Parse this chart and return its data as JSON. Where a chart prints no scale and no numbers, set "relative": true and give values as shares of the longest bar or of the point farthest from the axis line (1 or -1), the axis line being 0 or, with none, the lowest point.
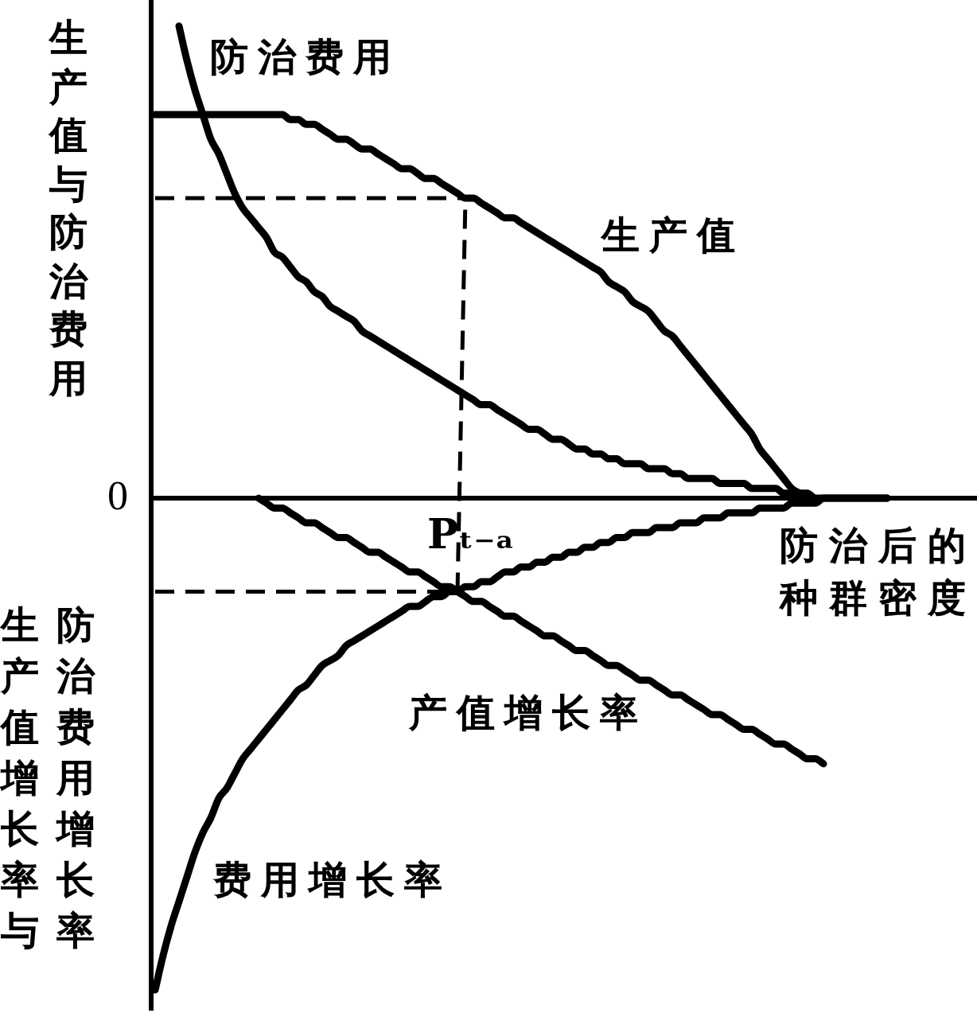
{
  "chart_data": {
    "type": "line",
    "relative": true,
    "ylabel": "生产值与防治费用",
    "xlabel": "防治后的种群密度",
    "categories": [
      null,
      null,
      null,
      null,
      null,
      null,
      null,
      null,
      null,
      null,
      null,
      null,
      null,
      null,
      null,
      null,
      null,
      null,
      null,
      null,
      null,
      null,
      null,
      null,
      null,
      null,
      null,
      null,
      null,
      null,
      null,
      null,
      null,
      null,
      null,
      null,
      null,
      null,
      null,
      null,
      null,
      null,
      null,
      null,
      null,
      null,
      null,
      null,
      null,
      null,
      null,
      null,
      null,
      null,
      null,
      null,
      null,
      null,
      null,
      null,
      null,
      null,
      null,
      null,
      null,
      null,
      null,
      null,
      null,
      null,
      null,
      null,
      null,
      null,
      null,
      null,
      null,
      null,
      null,
      null,
      null,
      null,
      null,
      null,
      null,
      null,
      null,
      null,
      null,
      null,
      null,
      null,
      null,
      null,
      null,
      null,
      null,
      null,
      null,
      null,
      null,
      null,
      null,
      null
    ],
    "series": [
      {
        "name": "生产值",
        "color": "#000000",
        "values": [
          0.78,
          0.78,
          0.78,
          0.78,
          0.78,
          0.78,
          0.78,
          0.78,
          0.78,
          0.78,
          0.78,
          0.78,
          0.78,
          0.78,
          0.78,
          0.78,
          0.78,
          0.77,
          0.77,
          0.76,
          0.76,
          0.75,
          0.74,
          0.73,
          0.73,
          0.72,
          0.71,
          0.71,
          0.7,
          0.69,
          0.68,
          0.67,
          0.67,
          0.66,
          0.65,
          0.65,
          0.64,
          0.63,
          0.62,
          0.61,
          0.61,
          0.6,
          0.59,
          0.58,
          0.57,
          0.57,
          0.56,
          0.55,
          0.54,
          0.53,
          0.52,
          0.51,
          0.5,
          0.49,
          0.48,
          0.47,
          0.46,
          0.44,
          0.43,
          0.42,
          0.4,
          0.39,
          0.38,
          0.36,
          0.34,
          0.33,
          0.31,
          0.29,
          0.27,
          0.25,
          0.23,
          0.21,
          0.19,
          0.17,
          0.15,
          0.13,
          0.1,
          0.08,
          0.06,
          0.04,
          0.02,
          0.01,
          0,
          null,
          null,
          null,
          null,
          null,
          null,
          null,
          null,
          null,
          null,
          null,
          null,
          null,
          null,
          null,
          null,
          null,
          null,
          null,
          null,
          null
        ]
      },
      {
        "name": "防治费用",
        "color": "#000000",
        "values": [
          null,
          null,
          null,
          0.96,
          0.89,
          0.83,
          0.78,
          0.73,
          0.7,
          0.66,
          0.62,
          0.59,
          0.57,
          0.55,
          0.53,
          0.5,
          0.49,
          0.47,
          0.45,
          0.44,
          0.42,
          0.41,
          0.39,
          0.38,
          0.37,
          0.36,
          0.34,
          0.33,
          0.32,
          0.31,
          0.3,
          0.29,
          0.28,
          0.27,
          0.26,
          0.25,
          0.24,
          0.23,
          0.22,
          0.21,
          0.2,
          0.19,
          0.19,
          0.18,
          0.17,
          0.16,
          0.15,
          0.14,
          0.14,
          0.13,
          0.12,
          0.12,
          0.11,
          0.1,
          0.1,
          0.09,
          0.09,
          0.08,
          0.08,
          0.07,
          0.07,
          0.07,
          0.06,
          0.06,
          0.06,
          0.05,
          0.05,
          0.04,
          0.04,
          0.04,
          0.04,
          0.03,
          0.03,
          0.03,
          0.03,
          0.02,
          0.02,
          0.02,
          0.02,
          0.01,
          0.01,
          0.01,
          0.01,
          0,
          0,
          0,
          0,
          0,
          0,
          0,
          0,
          0,
          0,
          null,
          null,
          null,
          null,
          null,
          null,
          null,
          null,
          null,
          null,
          null
        ]
      },
      {
        "name": "产值增长率",
        "color": "#000000",
        "values": [
          null,
          null,
          null,
          null,
          null,
          null,
          null,
          null,
          null,
          null,
          null,
          null,
          null,
          0,
          -0.01,
          -0.02,
          -0.02,
          -0.03,
          -0.04,
          -0.05,
          -0.05,
          -0.06,
          -0.07,
          -0.08,
          -0.08,
          -0.09,
          -0.1,
          -0.11,
          -0.11,
          -0.12,
          -0.13,
          -0.14,
          -0.15,
          -0.15,
          -0.16,
          -0.17,
          -0.18,
          -0.18,
          -0.19,
          -0.2,
          -0.21,
          -0.21,
          -0.22,
          -0.23,
          -0.24,
          -0.24,
          -0.25,
          -0.26,
          -0.27,
          -0.28,
          -0.28,
          -0.29,
          -0.3,
          -0.31,
          -0.31,
          -0.32,
          -0.33,
          -0.34,
          -0.34,
          -0.35,
          -0.36,
          -0.37,
          -0.37,
          -0.38,
          -0.39,
          -0.4,
          -0.4,
          -0.41,
          -0.42,
          -0.43,
          -0.44,
          -0.44,
          -0.45,
          -0.46,
          -0.47,
          -0.47,
          -0.48,
          -0.49,
          -0.5,
          -0.5,
          -0.51,
          -0.52,
          -0.53,
          -0.53,
          -0.54,
          null,
          null,
          null,
          null,
          null,
          null,
          null,
          null,
          null,
          null,
          null,
          null,
          null,
          null,
          null,
          null,
          null,
          null,
          null
        ]
      },
      {
        "name": "费用增长率",
        "color": "#000000",
        "values": [
          -1.0,
          -0.93,
          -0.87,
          -0.82,
          -0.77,
          -0.72,
          -0.68,
          -0.65,
          -0.61,
          -0.59,
          -0.56,
          -0.53,
          -0.51,
          -0.49,
          -0.47,
          -0.45,
          -0.43,
          -0.41,
          -0.39,
          -0.38,
          -0.36,
          -0.34,
          -0.33,
          -0.32,
          -0.3,
          -0.29,
          -0.28,
          -0.27,
          -0.26,
          -0.25,
          -0.24,
          -0.23,
          -0.22,
          -0.22,
          -0.21,
          -0.2,
          -0.2,
          -0.19,
          -0.19,
          -0.18,
          -0.18,
          -0.17,
          -0.17,
          -0.16,
          -0.15,
          -0.15,
          -0.14,
          -0.14,
          -0.13,
          -0.13,
          -0.12,
          -0.12,
          -0.11,
          -0.11,
          -0.1,
          -0.1,
          -0.09,
          -0.09,
          -0.08,
          -0.08,
          -0.07,
          -0.07,
          -0.07,
          -0.06,
          -0.06,
          -0.06,
          -0.05,
          -0.05,
          -0.05,
          -0.04,
          -0.04,
          -0.04,
          -0.03,
          -0.03,
          -0.03,
          -0.03,
          -0.02,
          -0.02,
          -0.02,
          -0.02,
          -0.01,
          -0.01,
          -0.01,
          -0.01,
          0,
          0,
          0,
          0,
          0,
          0,
          0,
          0,
          0,
          null,
          null,
          null,
          null,
          null,
          null,
          null,
          null,
          null,
          null,
          null
        ]
      },
      {
        "color": "#000000",
        "line_style": "dashed",
        "values": [
          0.61,
          0.61,
          0.61,
          0.61,
          0.61,
          0.61,
          0.61,
          0.61,
          0.61,
          0.61,
          0.61,
          0.61,
          0.61,
          0.61,
          0.61,
          0.61,
          0.61,
          0.61,
          0.61,
          0.61,
          0.61,
          0.61,
          0.61,
          0.61,
          0.61,
          0.61,
          0.61,
          0.61,
          0.61,
          0.61,
          0.61,
          0.61,
          0.61,
          0.61,
          0.61,
          0.61,
          0.61,
          0.61,
          0.61,
          0.61,
          null,
          null,
          null,
          null,
          null,
          null,
          null,
          null,
          null,
          null,
          null,
          null,
          null,
          null,
          null,
          null,
          null,
          null,
          null,
          null,
          null,
          null,
          null,
          null,
          null,
          null,
          null,
          null,
          null,
          null,
          null,
          null,
          null,
          null,
          null,
          null,
          null,
          null,
          null,
          null,
          null,
          null,
          null,
          null,
          null,
          null,
          null,
          null,
          null,
          null,
          null,
          null,
          null,
          null,
          null,
          null,
          null,
          null,
          null,
          null,
          null,
          null,
          null,
          null
        ]
      },
      {
        "color": "#000000",
        "line_style": "dashed",
        "values": [
          -0.19,
          -0.19,
          -0.19,
          -0.19,
          -0.19,
          -0.19,
          -0.19,
          -0.19,
          -0.19,
          -0.19,
          -0.19,
          -0.19,
          -0.19,
          -0.19,
          -0.19,
          -0.19,
          -0.19,
          -0.19,
          -0.19,
          -0.19,
          -0.19,
          -0.19,
          -0.19,
          -0.19,
          -0.19,
          -0.19,
          -0.19,
          -0.19,
          -0.19,
          -0.19,
          -0.19,
          -0.19,
          -0.19,
          -0.19,
          -0.19,
          -0.19,
          -0.19,
          -0.19,
          -0.19,
          0.61,
          null,
          null,
          null,
          null,
          null,
          null,
          null,
          null,
          null,
          null,
          null,
          null,
          null,
          null,
          null,
          null,
          null,
          null,
          null,
          null,
          null,
          null,
          null,
          null,
          null,
          null,
          null,
          null,
          null,
          null,
          null,
          null,
          null,
          null,
          null,
          null,
          null,
          null,
          null,
          null,
          null,
          null,
          null,
          null,
          null,
          null,
          null,
          null,
          null,
          null,
          null,
          null,
          null,
          null,
          null,
          null,
          null,
          null,
          null,
          null,
          null,
          null,
          null,
          null
        ]
      }
    ],
    "annotations": [
      "0",
      {
        "text": "Pₜ₋ₐ",
        "y": -0.19
      },
      "生产值增长率与防治费用增长率"
    ]
  }
}
